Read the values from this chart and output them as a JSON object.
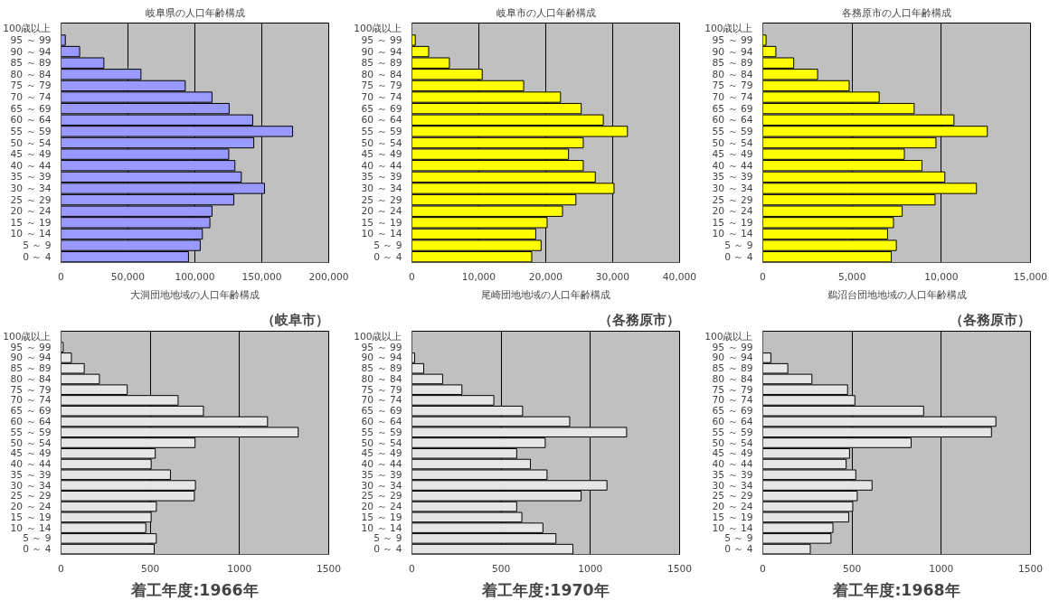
{
  "chart_data": [
    {
      "type": "bar",
      "orientation": "horizontal",
      "title": "岐阜県の人口年齢構成",
      "categories": [
        "100歳以上",
        "95 ～ 99",
        "90 ～ 94",
        "85 ～ 89",
        "80 ～ 84",
        "75 ～ 79",
        "70 ～ 74",
        "65 ～ 69",
        "60 ～ 64",
        "55 ～ 59",
        "50 ～ 54",
        "45 ～ 49",
        "40 ～ 44",
        "35 ～ 39",
        "30 ～ 34",
        "25 ～ 29",
        "20 ～ 24",
        "15 ～ 19",
        "10 ～ 14",
        "5 ～ 9",
        "0 ～ 4"
      ],
      "series": [
        {
          "color": "#9999ff",
          "values": [
            null,
            3200,
            13900,
            32000,
            59700,
            92800,
            112800,
            125600,
            143200,
            173000,
            144000,
            125300,
            129900,
            134700,
            152000,
            129100,
            112800,
            111200,
            105600,
            104000,
            95200
          ]
        }
      ],
      "xlim": [
        0,
        200000
      ],
      "xticks": [
        0,
        {
          "value": 50000,
          "label": "50,000"
        },
        {
          "value": 100000,
          "label": "100,000"
        },
        {
          "value": 150000,
          "label": "150,000"
        },
        {
          "value": 200000,
          "label": "200,000"
        }
      ],
      "grid": "x"
    },
    {
      "type": "bar",
      "orientation": "horizontal",
      "title": "岐阜市の人口年齢構成",
      "categories": [
        "100歳以上",
        "95 ～ 99",
        "90 ～ 94",
        "85 ～ 89",
        "80 ～ 84",
        "75 ～ 79",
        "70 ～ 74",
        "65 ～ 69",
        "60 ～ 64",
        "55 ～ 59",
        "50 ～ 54",
        "45 ～ 49",
        "40 ～ 44",
        "35 ～ 39",
        "30 ～ 34",
        "25 ～ 29",
        "20 ～ 24",
        "15 ～ 19",
        "10 ～ 14",
        "5 ～ 9",
        "0 ～ 4"
      ],
      "series": [
        {
          "color": "#ffff00",
          "values": [
            null,
            500,
            2500,
            5600,
            10500,
            16700,
            22200,
            25300,
            28600,
            32200,
            25600,
            23400,
            25600,
            27400,
            30200,
            24500,
            22500,
            20200,
            18500,
            19300,
            17900
          ]
        }
      ],
      "xlim": [
        0,
        40000
      ],
      "xticks": [
        0,
        {
          "value": 10000,
          "label": "10,000"
        },
        {
          "value": 20000,
          "label": "20,000"
        },
        {
          "value": 30000,
          "label": "30,000"
        },
        {
          "value": 40000,
          "label": "40,000"
        }
      ],
      "grid": "x"
    },
    {
      "type": "bar",
      "orientation": "horizontal",
      "title": "各務原市の人口年齢構成",
      "categories": [
        "100歳以上",
        "95 ～ 99",
        "90 ～ 94",
        "85 ～ 89",
        "80 ～ 84",
        "75 ～ 79",
        "70 ～ 74",
        "65 ～ 69",
        "60 ～ 64",
        "55 ～ 59",
        "50 ～ 54",
        "45 ～ 49",
        "40 ～ 44",
        "35 ～ 39",
        "30 ～ 34",
        "25 ～ 29",
        "20 ～ 24",
        "15 ～ 19",
        "10 ～ 14",
        "5 ～ 9",
        "0 ～ 4"
      ],
      "series": [
        {
          "color": "#ffff00",
          "values": [
            null,
            180,
            730,
            1730,
            3070,
            4840,
            6520,
            8480,
            10710,
            12580,
            9700,
            7930,
            8920,
            10200,
            11970,
            9650,
            7810,
            7320,
            6990,
            7480,
            7200
          ]
        }
      ],
      "xlim": [
        0,
        15000
      ],
      "xticks": [
        0,
        {
          "value": 5000,
          "label": "5,000"
        },
        {
          "value": 10000,
          "label": "10,000"
        },
        {
          "value": 15000,
          "label": "15,000"
        }
      ],
      "grid": "x"
    },
    {
      "type": "bar",
      "orientation": "horizontal",
      "title": "大洞団地地域の人口年齢構成",
      "annotations": [
        "（岐阜市）",
        "着工年度:1966年"
      ],
      "categories": [
        "100歳以上",
        "95 ～ 99",
        "90 ～ 94",
        "85 ～ 89",
        "80 ～ 84",
        "75 ～ 79",
        "70 ～ 74",
        "65 ～ 69",
        "60 ～ 64",
        "55 ～ 59",
        "50 ～ 54",
        "45 ～ 49",
        "40 ～ 44",
        "35 ～ 39",
        "30 ～ 34",
        "25 ～ 29",
        "20 ～ 24",
        "15 ～ 19",
        "10 ～ 14",
        "5 ～ 9",
        "0 ～ 4"
      ],
      "series": [
        {
          "color": "#e6e6e6",
          "values": [
            null,
            12,
            58,
            130,
            215,
            371,
            656,
            798,
            1157,
            1329,
            751,
            528,
            505,
            613,
            753,
            747,
            534,
            505,
            475,
            534,
            522
          ]
        }
      ],
      "xlim": [
        0,
        1500
      ],
      "xticks": [
        0,
        500,
        1000,
        1500
      ],
      "grid": "x"
    },
    {
      "type": "bar",
      "orientation": "horizontal",
      "title": "尾崎団地地域の人口年齢構成",
      "annotations": [
        "（各務原市）",
        "着工年度:1970年"
      ],
      "categories": [
        "100歳以上",
        "95 ～ 99",
        "90 ～ 94",
        "85 ～ 89",
        "80 ～ 84",
        "75 ～ 79",
        "70 ～ 74",
        "65 ～ 69",
        "60 ～ 64",
        "55 ～ 59",
        "50 ～ 54",
        "45 ～ 49",
        "40 ～ 44",
        "35 ～ 39",
        "30 ～ 34",
        "25 ～ 29",
        "20 ～ 24",
        "15 ～ 19",
        "10 ～ 14",
        "5 ～ 9",
        "0 ～ 4"
      ],
      "series": [
        {
          "color": "#e6e6e6",
          "values": [
            null,
            0,
            15,
            66,
            172,
            280,
            459,
            620,
            884,
            1203,
            747,
            587,
            664,
            757,
            1093,
            948,
            587,
            616,
            734,
            807,
            902
          ]
        }
      ],
      "xlim": [
        0,
        1500
      ],
      "xticks": [
        0,
        500,
        1000,
        1500
      ],
      "grid": "x"
    },
    {
      "type": "bar",
      "orientation": "horizontal",
      "title": "鵜沼台団地地域の人口年齢構成",
      "annotations": [
        "（各務原市）",
        "着工年度:1968年"
      ],
      "categories": [
        "100歳以上",
        "95 ～ 99",
        "90 ～ 94",
        "85 ～ 89",
        "80 ～ 84",
        "75 ～ 79",
        "70 ～ 74",
        "65 ～ 69",
        "60 ～ 64",
        "55 ～ 59",
        "50 ～ 54",
        "45 ～ 49",
        "40 ～ 44",
        "35 ～ 39",
        "30 ～ 34",
        "25 ～ 29",
        "20 ～ 24",
        "15 ～ 19",
        "10 ～ 14",
        "5 ～ 9",
        "0 ～ 4"
      ],
      "series": [
        {
          "color": "#e6e6e6",
          "values": [
            null,
            0,
            45,
            140,
            275,
            475,
            516,
            901,
            1306,
            1281,
            831,
            486,
            467,
            521,
            612,
            529,
            504,
            481,
            393,
            382,
            266
          ]
        }
      ],
      "xlim": [
        0,
        1500
      ],
      "xticks": [
        0,
        500,
        1000,
        1500
      ],
      "grid": "x"
    }
  ]
}
